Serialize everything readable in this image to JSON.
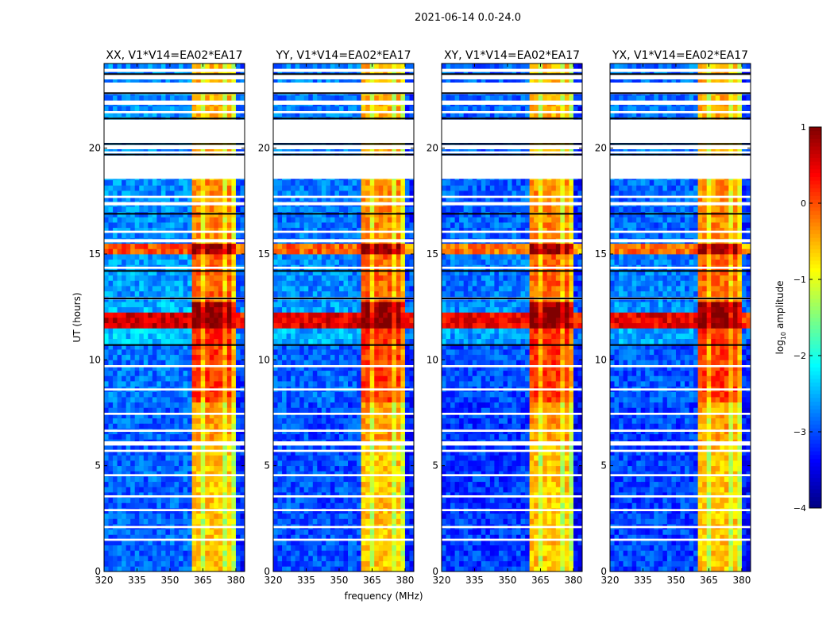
{
  "chart_data": {
    "type": "heatmap",
    "suptitle": "2021-06-14 0.0-24.0",
    "xlabel": "frequency (MHz)",
    "ylabel": "UT (hours)",
    "xlim": [
      320,
      384
    ],
    "ylim": [
      0,
      24
    ],
    "xticks": [
      320,
      335,
      350,
      365,
      380
    ],
    "yticks": [
      0,
      5,
      10,
      15,
      20
    ],
    "colormap": "jet",
    "colorbar": {
      "label": "log10 amplitude",
      "label_main": "log",
      "label_sub": "10",
      "label_rest": " amplitude",
      "range": [
        -4,
        1
      ],
      "ticks": [
        1,
        0,
        -1,
        -2,
        -3,
        -4
      ],
      "tick_labels": [
        "1",
        "0",
        "−1",
        "−2",
        "−3",
        "−4"
      ]
    },
    "panels": [
      {
        "title": "XX, V1*V14=EA02*EA17",
        "offset": 0.1
      },
      {
        "title": "YY, V1*V14=EA02*EA17",
        "offset": 0.0
      },
      {
        "title": "XY, V1*V14=EA02*EA17",
        "offset": -0.1
      },
      {
        "title": "YX, V1*V14=EA02*EA17",
        "offset": -0.05
      }
    ],
    "band_MHz": [
      361,
      380
    ],
    "band_gaps_MHz": [
      365,
      370,
      374.5,
      378.5
    ],
    "segments_hours": [
      {
        "t": [
          0,
          6
        ],
        "bg": -3.0,
        "band": -0.6
      },
      {
        "t": [
          6,
          8
        ],
        "bg": -3.0,
        "band": -0.4
      },
      {
        "t": [
          8,
          10.7
        ],
        "bg": -2.9,
        "band": 0.1
      },
      {
        "t": [
          10.7,
          11.4
        ],
        "bg": -2.5,
        "band": 0.2
      },
      {
        "t": [
          11.4,
          12.3
        ],
        "bg": 0.5,
        "band": 1.0
      },
      {
        "t": [
          12.3,
          12.8
        ],
        "bg": -2.6,
        "band": 0.9
      },
      {
        "t": [
          12.8,
          15.1
        ],
        "bg": -2.7,
        "band": -0.1
      },
      {
        "t": [
          15.1,
          15.4
        ],
        "bg": -0.1,
        "band": 0.9
      },
      {
        "t": [
          15.4,
          18.6
        ],
        "bg": -2.8,
        "band": -0.3
      },
      {
        "t": [
          18.6,
          24
        ],
        "bg": -2.8,
        "band": -0.5
      }
    ],
    "flagged_hours": [
      [
        1.45,
        1.55
      ],
      [
        2.05,
        2.15
      ],
      [
        2.85,
        2.95
      ],
      [
        3.5,
        3.6
      ],
      [
        4.5,
        4.6
      ],
      [
        5.65,
        5.75
      ],
      [
        5.95,
        6.15
      ],
      [
        6.6,
        6.7
      ],
      [
        7.4,
        7.5
      ],
      [
        8.55,
        8.65
      ],
      [
        9.65,
        9.75
      ],
      [
        12.85,
        12.95
      ],
      [
        14.3,
        14.4
      ],
      [
        15.55,
        15.7
      ],
      [
        16.0,
        16.1
      ],
      [
        17.3,
        17.45
      ],
      [
        17.65,
        17.75
      ],
      [
        18.55,
        19.65
      ],
      [
        19.75,
        19.85
      ],
      [
        19.95,
        20.15
      ],
      [
        20.25,
        21.35
      ],
      [
        21.65,
        21.75
      ],
      [
        22.05,
        22.25
      ],
      [
        22.55,
        23.1
      ],
      [
        23.25,
        23.5
      ],
      [
        23.6,
        23.75
      ]
    ],
    "black_lines_hours": [
      10.7,
      12.9,
      14.2,
      16.9,
      19.7,
      20.2,
      21.4,
      22.6,
      23.5
    ]
  }
}
